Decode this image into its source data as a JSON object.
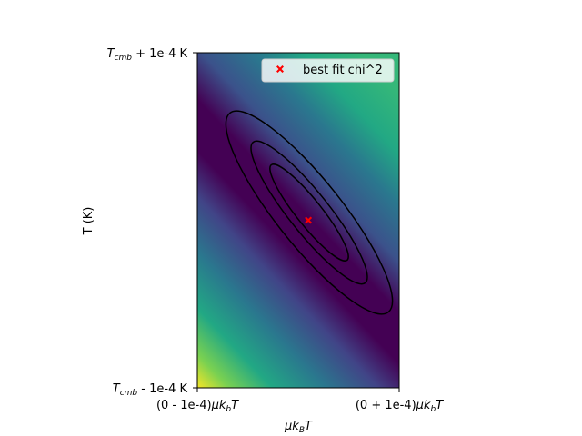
{
  "chart_data": {
    "type": "heatmap",
    "title": "",
    "xlabel": "μk_BT",
    "ylabel": "T (K)",
    "x_ticks": [
      {
        "value": -0.0001,
        "label": "(0 - 1e-4)μk_bT"
      },
      {
        "value": 0.0001,
        "label": "(0 + 1e-4)μk_bT"
      }
    ],
    "y_ticks": [
      {
        "value": -0.0001,
        "label": "T_cmb - 1e-4 K"
      },
      {
        "value": 0.0001,
        "label": "T_cmb + 1e-4 K"
      }
    ],
    "xlim": [
      -0.0001,
      0.0001
    ],
    "ylim": [
      -0.0001,
      0.0001
    ],
    "colormap": "viridis",
    "grid": false,
    "best_fit": {
      "x": 1e-05,
      "y": 0.0,
      "marker": "X",
      "color": "#ff0000",
      "label": "best fit chi^2"
    },
    "legend": {
      "position": "top-right",
      "entries": [
        "best fit chi^2"
      ]
    },
    "contour_levels": 3,
    "contour_color": "#000000"
  }
}
